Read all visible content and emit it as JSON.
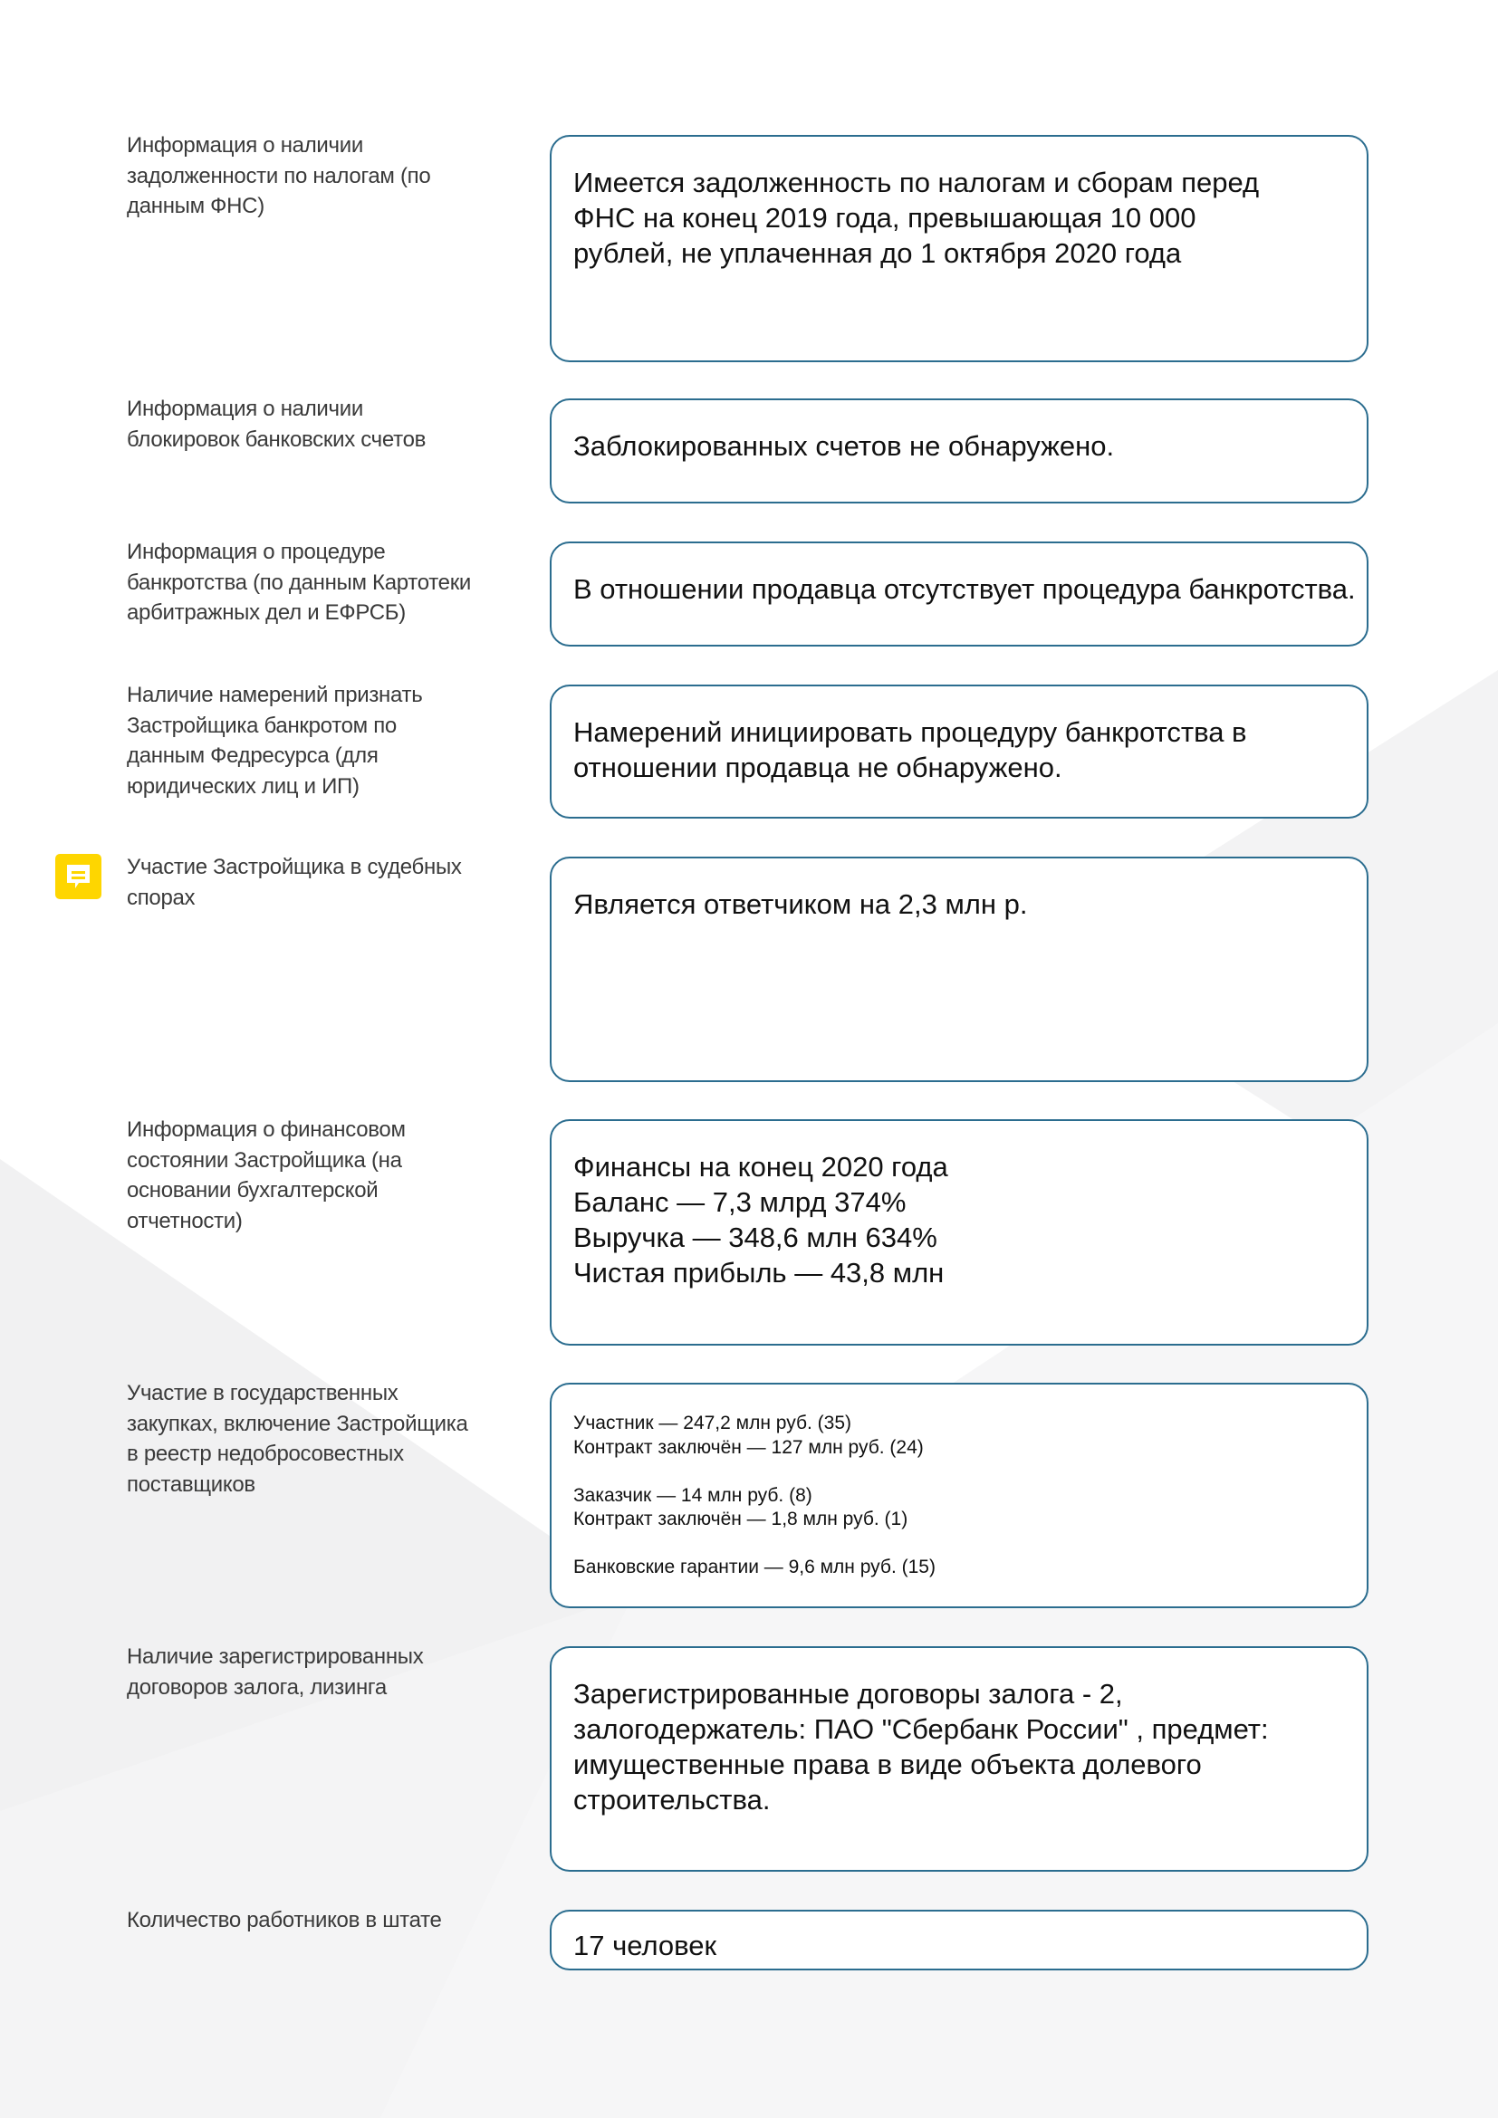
{
  "colors": {
    "box_border": "#2b6d8f",
    "note_icon": "#fed600"
  },
  "rows": [
    {
      "label": [
        "Информация о наличии",
        "задолженности по налогам (по",
        "данным ФНС)"
      ],
      "value": [
        "Имеется задолженность по налогам и сборам перед",
        "ФНС на конец 2019 года, превышающая 10 000",
        "рублей, не уплаченная до 1 октября 2020 года"
      ]
    },
    {
      "label": [
        "Информация о наличии",
        "блокировок банковских счетов"
      ],
      "value": [
        "Заблокированных счетов не обнаружено."
      ]
    },
    {
      "label": [
        "Информация о процедуре",
        "банкротства (по данным Картотеки",
        "арбитражных дел и ЕФРСБ)"
      ],
      "value": [
        "В отношении продавца отсутствует процедура банкротства."
      ]
    },
    {
      "label": [
        "Наличие намерений признать",
        "Застройщика банкротом по",
        "данным Федресурса (для",
        "юридических лиц и ИП)"
      ],
      "value": [
        "Намерений инициировать процедуру банкротства в",
        "отношении продавца не обнаружено."
      ]
    },
    {
      "label": [
        "Участие Застройщика в судебных",
        "спорах"
      ],
      "value": [
        "Является ответчиком на 2,3 млн р."
      ],
      "icon": "comment-note-icon"
    },
    {
      "label": [
        "Информация о финансовом",
        "состоянии Застройщика (на",
        "основании бухгалтерской",
        "отчетности)"
      ],
      "value": [
        "Финансы на конец 2020 года",
        "Баланс — 7,3 млрд 374%",
        "Выручка — 348,6 млн 634%",
        "Чистая прибыль — 43,8 млн"
      ]
    },
    {
      "label": [
        "Участие в государственных",
        "закупках, включение Застройщика",
        "в реестр недобросовестных",
        "поставщиков"
      ],
      "value": [
        "Участник — 247,2 млн руб. (35)",
        "Контракт заключён — 127 млн руб. (24)",
        "",
        "Заказчик — 14 млн руб. (8)",
        "Контракт заключён — 1,8 млн руб. (1)",
        "",
        "Банковские гарантии — 9,6 млн руб. (15)"
      ]
    },
    {
      "label": [
        "Наличие зарегистрированных",
        "договоров залога, лизинга"
      ],
      "value": [
        "Зарегистрированные договоры залога - 2,",
        "залогодержатель: ПАО \"Сбербанк России\" , предмет:",
        "имущественные права в виде объекта долевого",
        "строительства."
      ]
    },
    {
      "label": [
        "Количество работников в штате"
      ],
      "value": [
        "17 человек"
      ]
    }
  ]
}
